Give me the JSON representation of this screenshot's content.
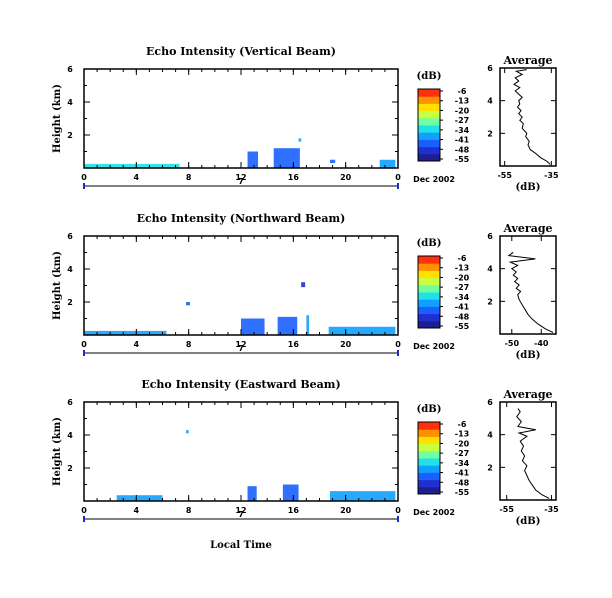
{
  "date_label": "Dec 2002",
  "day_label": "7",
  "xlabel_bottom": "Local Time",
  "cbar_unit": "(dB)",
  "cbar_ticks": [
    "-6",
    "-13",
    "-20",
    "-27",
    "-34",
    "-41",
    "-48",
    "-55"
  ],
  "cbar_range": [
    -55,
    -6
  ],
  "colormap": [
    "#1e1e90",
    "#2030d0",
    "#1a60ff",
    "#10a0ff",
    "#20e0e8",
    "#70ffa0",
    "#c8ff40",
    "#ffe000",
    "#ff9000",
    "#ff3010"
  ],
  "chart_data": [
    {
      "type": "heatmap",
      "title": "Echo Intensity (Vertical Beam)",
      "ylabel": "Height (km)",
      "xlim": [
        0,
        24
      ],
      "ylim": [
        0,
        6
      ],
      "xticks": [
        "0",
        "4",
        "8",
        "12",
        "16",
        "20",
        "0"
      ],
      "yticks": [
        "2",
        "4",
        "6"
      ],
      "echoes": [
        {
          "x0": 0.0,
          "x1": 7.3,
          "y0": 0.0,
          "y1": 0.25,
          "level": 4
        },
        {
          "x0": 12.5,
          "x1": 13.3,
          "y0": 0.0,
          "y1": 1.0,
          "level": 2
        },
        {
          "x0": 14.5,
          "x1": 16.5,
          "y0": 0.0,
          "y1": 1.2,
          "level": 2
        },
        {
          "x0": 16.4,
          "x1": 16.6,
          "y0": 1.6,
          "y1": 1.8,
          "level": 3
        },
        {
          "x0": 18.8,
          "x1": 19.2,
          "y0": 0.3,
          "y1": 0.5,
          "level": 2
        },
        {
          "x0": 22.6,
          "x1": 23.8,
          "y0": 0.0,
          "y1": 0.5,
          "level": 3
        }
      ]
    },
    {
      "type": "heatmap",
      "title": "Echo Intensity (Northward Beam)",
      "ylabel": "Height (km)",
      "xlim": [
        0,
        24
      ],
      "ylim": [
        0,
        6
      ],
      "xticks": [
        "0",
        "4",
        "8",
        "12",
        "16",
        "20",
        "0"
      ],
      "yticks": [
        "2",
        "4",
        "6"
      ],
      "echoes": [
        {
          "x0": 0.0,
          "x1": 6.3,
          "y0": 0.0,
          "y1": 0.25,
          "level": 3
        },
        {
          "x0": 7.8,
          "x1": 8.1,
          "y0": 1.8,
          "y1": 2.0,
          "level": 2
        },
        {
          "x0": 12.0,
          "x1": 13.8,
          "y0": 0.0,
          "y1": 1.0,
          "level": 2
        },
        {
          "x0": 14.8,
          "x1": 16.3,
          "y0": 0.0,
          "y1": 1.1,
          "level": 2
        },
        {
          "x0": 16.6,
          "x1": 16.9,
          "y0": 2.9,
          "y1": 3.2,
          "level": 1
        },
        {
          "x0": 17.0,
          "x1": 17.2,
          "y0": 0.0,
          "y1": 1.2,
          "level": 3
        },
        {
          "x0": 18.7,
          "x1": 23.8,
          "y0": 0.0,
          "y1": 0.5,
          "level": 3
        }
      ]
    },
    {
      "type": "heatmap",
      "title": "Echo Intensity (Eastward Beam)",
      "ylabel": "Height (km)",
      "xlim": [
        0,
        24
      ],
      "ylim": [
        0,
        6
      ],
      "xticks": [
        "0",
        "4",
        "8",
        "12",
        "16",
        "20",
        "0"
      ],
      "yticks": [
        "2",
        "4",
        "6"
      ],
      "echoes": [
        {
          "x0": 2.5,
          "x1": 6.0,
          "y0": 0.0,
          "y1": 0.35,
          "level": 3
        },
        {
          "x0": 7.8,
          "x1": 8.0,
          "y0": 4.1,
          "y1": 4.3,
          "level": 3
        },
        {
          "x0": 12.5,
          "x1": 13.2,
          "y0": 0.0,
          "y1": 0.9,
          "level": 2
        },
        {
          "x0": 15.2,
          "x1": 16.4,
          "y0": 0.0,
          "y1": 1.0,
          "level": 2
        },
        {
          "x0": 18.8,
          "x1": 23.8,
          "y0": 0.0,
          "y1": 0.6,
          "level": 3
        }
      ]
    },
    {
      "type": "line",
      "title": "Average",
      "xlabel": "(dB)",
      "xticks": [
        "-55",
        "-35"
      ],
      "xlim": [
        -57,
        -33
      ],
      "ylim": [
        0,
        6
      ],
      "yticks": [
        "2",
        "4",
        "6"
      ],
      "profile": [
        [
          -35.5,
          0.1
        ],
        [
          -37.0,
          0.3
        ],
        [
          -39.5,
          0.5
        ],
        [
          -42.0,
          0.8
        ],
        [
          -44.0,
          1.0
        ],
        [
          -45.0,
          1.3
        ],
        [
          -44.5,
          1.5
        ],
        [
          -46.0,
          1.8
        ],
        [
          -45.5,
          2.0
        ],
        [
          -47.5,
          2.3
        ],
        [
          -47.0,
          2.6
        ],
        [
          -48.5,
          2.8
        ],
        [
          -47.5,
          3.0
        ],
        [
          -49.0,
          3.2
        ],
        [
          -48.0,
          3.4
        ],
        [
          -49.5,
          3.6
        ],
        [
          -48.5,
          3.8
        ],
        [
          -49.0,
          4.0
        ],
        [
          -47.5,
          4.2
        ],
        [
          -49.0,
          4.4
        ],
        [
          -50.5,
          4.6
        ],
        [
          -48.5,
          4.8
        ],
        [
          -51.0,
          5.0
        ],
        [
          -49.0,
          5.2
        ],
        [
          -50.5,
          5.4
        ],
        [
          -47.5,
          5.6
        ],
        [
          -50.0,
          5.8
        ],
        [
          -45.5,
          5.9
        ]
      ]
    },
    {
      "type": "line",
      "title": "Average",
      "xlabel": "(dB)",
      "xticks": [
        "-50",
        "-40"
      ],
      "xlim": [
        -54,
        -35
      ],
      "ylim": [
        0,
        6
      ],
      "yticks": [
        "2",
        "4",
        "6"
      ],
      "profile": [
        [
          -36.0,
          0.1
        ],
        [
          -38.5,
          0.3
        ],
        [
          -41.0,
          0.6
        ],
        [
          -43.0,
          0.9
        ],
        [
          -44.5,
          1.2
        ],
        [
          -45.5,
          1.5
        ],
        [
          -46.5,
          1.8
        ],
        [
          -47.5,
          2.1
        ],
        [
          -48.0,
          2.4
        ],
        [
          -47.0,
          2.6
        ],
        [
          -48.5,
          2.8
        ],
        [
          -47.5,
          3.0
        ],
        [
          -49.0,
          3.2
        ],
        [
          -48.0,
          3.4
        ],
        [
          -49.5,
          3.6
        ],
        [
          -48.5,
          3.8
        ],
        [
          -50.0,
          4.0
        ],
        [
          -48.0,
          4.2
        ],
        [
          -50.5,
          4.4
        ],
        [
          -42.0,
          4.6
        ],
        [
          -51.0,
          4.8
        ],
        [
          -49.5,
          5.0
        ]
      ]
    },
    {
      "type": "line",
      "title": "Average",
      "xlabel": "(dB)",
      "xticks": [
        "-55",
        "-35"
      ],
      "xlim": [
        -58,
        -33
      ],
      "ylim": [
        0,
        6
      ],
      "yticks": [
        "2",
        "4",
        "6"
      ],
      "profile": [
        [
          -36.0,
          0.1
        ],
        [
          -39.0,
          0.3
        ],
        [
          -42.0,
          0.6
        ],
        [
          -43.5,
          0.9
        ],
        [
          -45.0,
          1.2
        ],
        [
          -46.0,
          1.5
        ],
        [
          -47.0,
          1.8
        ],
        [
          -46.0,
          2.1
        ],
        [
          -48.0,
          2.4
        ],
        [
          -47.0,
          2.7
        ],
        [
          -48.5,
          3.0
        ],
        [
          -47.5,
          3.3
        ],
        [
          -49.0,
          3.6
        ],
        [
          -46.0,
          3.9
        ],
        [
          -49.5,
          4.1
        ],
        [
          -42.0,
          4.3
        ],
        [
          -50.0,
          4.5
        ],
        [
          -48.5,
          4.8
        ],
        [
          -50.5,
          5.1
        ],
        [
          -49.0,
          5.4
        ],
        [
          -50.0,
          5.6
        ]
      ]
    }
  ]
}
